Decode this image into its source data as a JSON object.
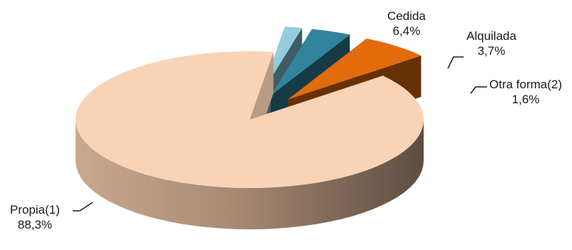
{
  "chart_data": {
    "type": "pie",
    "variant": "3d-exploded",
    "title": "",
    "slices": [
      {
        "label": "Propia(1)",
        "value": 88.3,
        "value_text": "88,3%",
        "color": "#f9d3b6",
        "exploded": false
      },
      {
        "label": "Cedida",
        "value": 6.4,
        "value_text": "6,4%",
        "color": "#e36c0a",
        "exploded": true
      },
      {
        "label": "Alquilada",
        "value": 3.7,
        "value_text": "3,7%",
        "color": "#31849b",
        "exploded": true
      },
      {
        "label": "Otra forma(2)",
        "value": 1.6,
        "value_text": "1,6%",
        "color": "#93cddd",
        "exploded": true
      }
    ],
    "legend": "none"
  }
}
